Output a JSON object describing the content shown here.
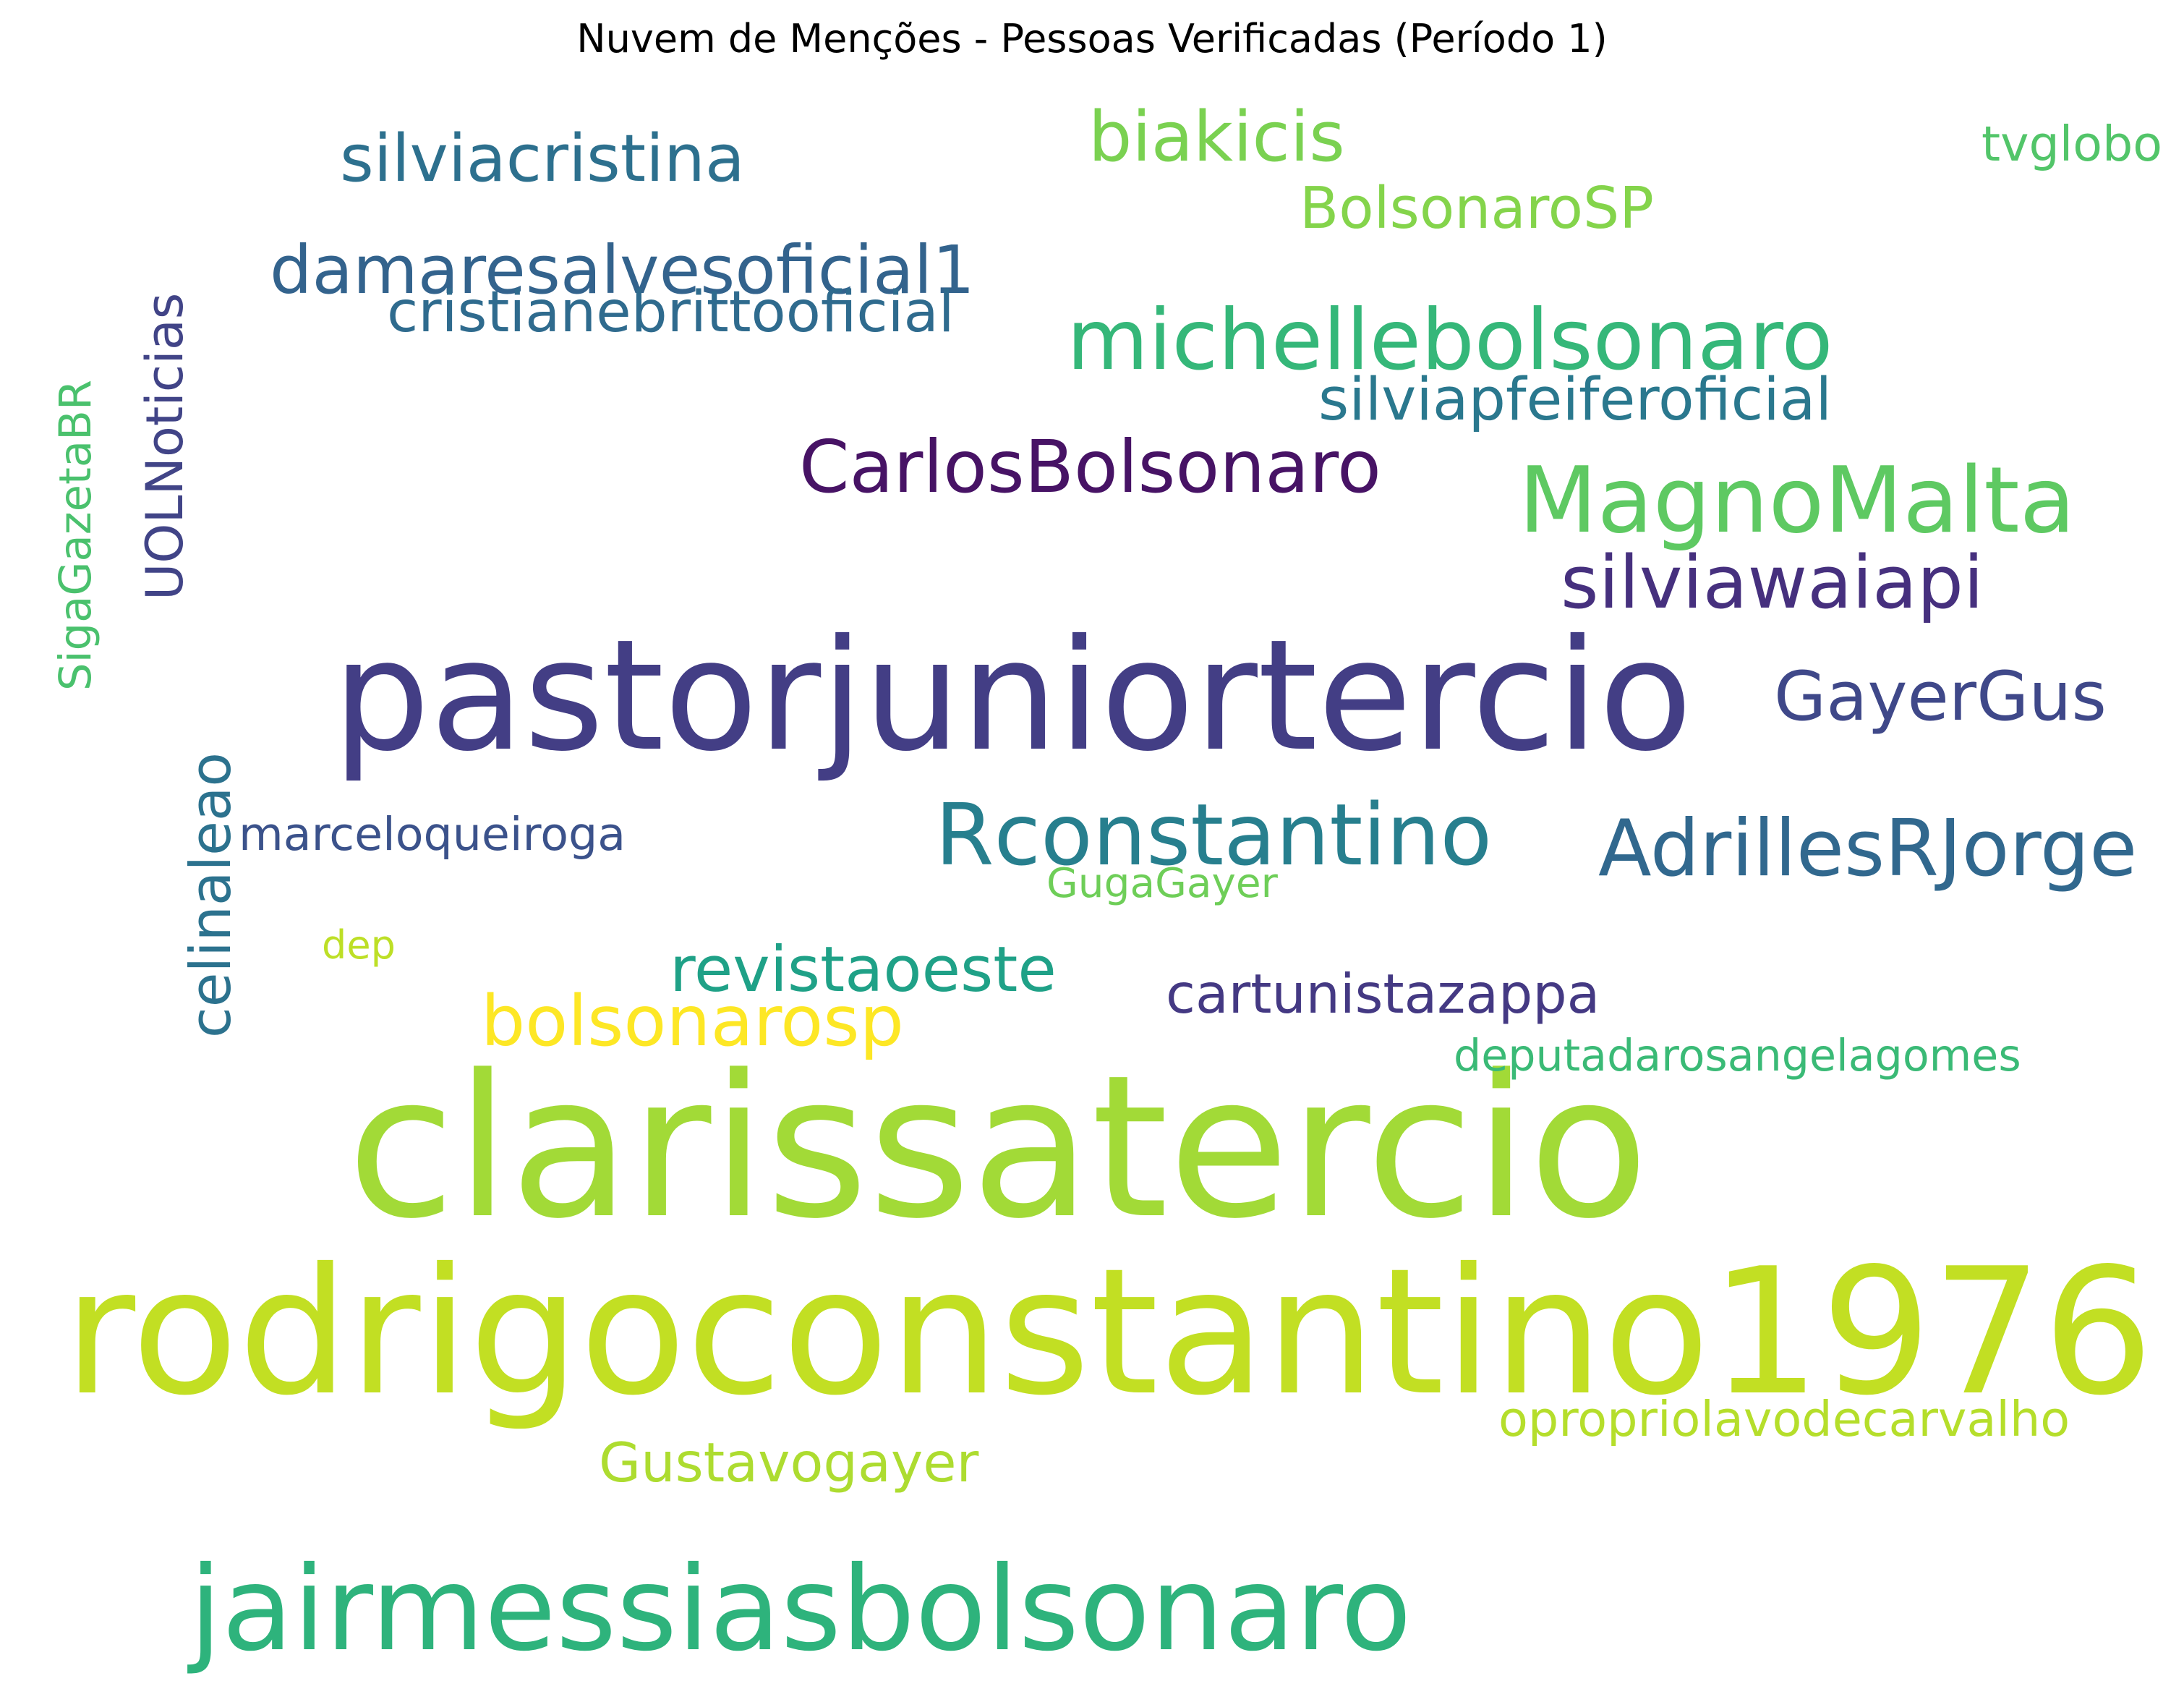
{
  "chart_data": {
    "type": "wordcloud",
    "title": "Nuvem de Menções - Pessoas Verificadas (Período 1)",
    "colormap": "viridis",
    "background": "#ffffff",
    "words": [
      {
        "text": "rodrigoconstantino1976",
        "weight": 1.0,
        "color": "#c2df23",
        "orientation": "horizontal"
      },
      {
        "text": "clarissatercio",
        "weight": 0.9,
        "color": "#a2da37",
        "orientation": "horizontal"
      },
      {
        "text": "pastorjuniortercio",
        "weight": 0.88,
        "color": "#433e85",
        "orientation": "horizontal"
      },
      {
        "text": "jairmessiasbolsonaro",
        "weight": 0.62,
        "color": "#2eb37c",
        "orientation": "horizontal"
      },
      {
        "text": "MagnoMalta",
        "weight": 0.6,
        "color": "#5ec962",
        "orientation": "horizontal"
      },
      {
        "text": "michellebolsonaro",
        "weight": 0.44,
        "color": "#35b779",
        "orientation": "horizontal"
      },
      {
        "text": "Rconstantino",
        "weight": 0.47,
        "color": "#277f8e",
        "orientation": "horizontal"
      },
      {
        "text": "AdrillesRJorge",
        "weight": 0.4,
        "color": "#31688e",
        "orientation": "horizontal"
      },
      {
        "text": "GayerGus",
        "weight": 0.39,
        "color": "#3f4889",
        "orientation": "horizontal"
      },
      {
        "text": "CarlosBolsonaro",
        "weight": 0.38,
        "color": "#471365",
        "orientation": "horizontal"
      },
      {
        "text": "bolsonarosp",
        "weight": 0.37,
        "color": "#fde725",
        "orientation": "horizontal"
      },
      {
        "text": "damaresalvesoficial1",
        "weight": 0.35,
        "color": "#33638d",
        "orientation": "horizontal"
      },
      {
        "text": "Gustavogayer",
        "weight": 0.33,
        "color": "#addc30",
        "orientation": "horizontal"
      },
      {
        "text": "silviawaiapi",
        "weight": 0.33,
        "color": "#46307e",
        "orientation": "horizontal"
      },
      {
        "text": "biakicis",
        "weight": 0.32,
        "color": "#7ad151",
        "orientation": "horizontal"
      },
      {
        "text": "BolsonaroSP",
        "weight": 0.32,
        "color": "#84d44b",
        "orientation": "horizontal"
      },
      {
        "text": "revistaoeste",
        "weight": 0.3,
        "color": "#1fa187",
        "orientation": "horizontal"
      },
      {
        "text": "UOLNoticias",
        "weight": 0.31,
        "color": "#414487",
        "orientation": "vertical"
      },
      {
        "text": "celinaleao",
        "weight": 0.29,
        "color": "#2c728e",
        "orientation": "vertical"
      },
      {
        "text": "silviacristina",
        "weight": 0.28,
        "color": "#2d708e",
        "orientation": "horizontal"
      },
      {
        "text": "cartunistazappa",
        "weight": 0.28,
        "color": "#443983",
        "orientation": "horizontal"
      },
      {
        "text": "marceloqueiroga",
        "weight": 0.25,
        "color": "#3b528b",
        "orientation": "horizontal"
      },
      {
        "text": "GugaGayer",
        "weight": 0.24,
        "color": "#6ece58",
        "orientation": "horizontal"
      },
      {
        "text": "SigaGazetaBR",
        "weight": 0.25,
        "color": "#4ac16d",
        "orientation": "vertical"
      },
      {
        "text": "silviapfeiferoficial",
        "weight": 0.25,
        "color": "#2a788e",
        "orientation": "horizontal"
      },
      {
        "text": "cristianebrittooficial",
        "weight": 0.25,
        "color": "#2f6b8e",
        "orientation": "horizontal"
      },
      {
        "text": "deputadarosangelagomes",
        "weight": 0.25,
        "color": "#3aba76",
        "orientation": "horizontal"
      },
      {
        "text": "opropriolavodecarvalho",
        "weight": 0.25,
        "color": "#b5de2b",
        "orientation": "horizontal"
      },
      {
        "text": "tvglobo",
        "weight": 0.24,
        "color": "#52c569",
        "orientation": "horizontal"
      },
      {
        "text": "dep",
        "weight": 0.24,
        "color": "#bddf26",
        "orientation": "horizontal"
      }
    ]
  }
}
